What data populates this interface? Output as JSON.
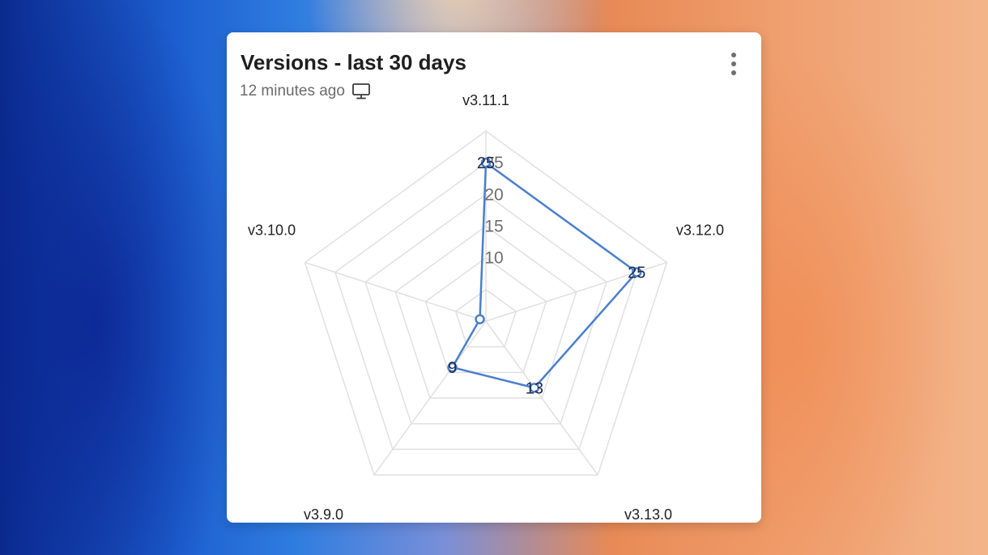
{
  "card": {
    "title": "Versions - last 30 days",
    "subtitle": "12 minutes ago",
    "subtitle_icon": "monitor-icon",
    "menu_icon": "more-vertical-icon"
  },
  "colors": {
    "series": "#4a7fce",
    "grid": "#e0e0e0"
  },
  "chart_data": {
    "type": "radar",
    "categories": [
      "v3.11.1",
      "v3.12.0",
      "v3.13.0",
      "v3.9.0",
      "v3.10.0"
    ],
    "series": [
      {
        "values": [
          25,
          25,
          13,
          9,
          1
        ]
      }
    ],
    "data_labels": [
      "25",
      "25",
      "13",
      "9",
      ""
    ],
    "rlim": [
      0,
      30
    ],
    "ticks": [
      10,
      15,
      20,
      25
    ],
    "tick_labels": [
      "10",
      "15",
      "20",
      "25"
    ],
    "grid": true,
    "legend": "none"
  }
}
